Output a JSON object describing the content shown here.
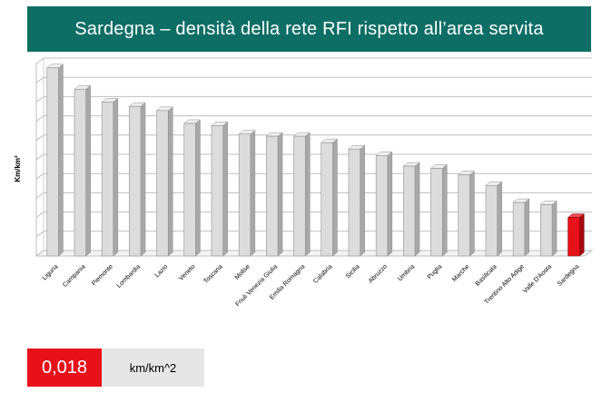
{
  "title": "Sardegna – densità della rete RFI rispetto all’area servita",
  "kpi": {
    "value": "0,018",
    "unit": "km/km^2"
  },
  "colors": {
    "banner": "#0d6e66",
    "highlight": "#e8111a",
    "bar": "#dcdcdc"
  },
  "chart_data": {
    "type": "bar",
    "ylabel": "Km/km²",
    "categories": [
      "Liguria",
      "Campania",
      "Piemonte",
      "Lombardia",
      "Lazio",
      "Veneto",
      "Toscana",
      "Molise",
      "Friuli Venezia Giulia",
      "Emilia Romagna",
      "Calabria",
      "Sicilia",
      "Abruzzo",
      "Umbria",
      "Puglia",
      "Marche",
      "Basilicata",
      "Trentino Alto Adige",
      "Valle D'Aosta",
      "Sardegna"
    ],
    "values": [
      0.088,
      0.078,
      0.072,
      0.07,
      0.068,
      0.062,
      0.061,
      0.057,
      0.056,
      0.056,
      0.053,
      0.05,
      0.047,
      0.042,
      0.041,
      0.038,
      0.033,
      0.025,
      0.024,
      0.018
    ],
    "highlight": "Sardegna",
    "ylim": [
      0,
      0.09
    ],
    "grid": true,
    "legend": "none"
  }
}
